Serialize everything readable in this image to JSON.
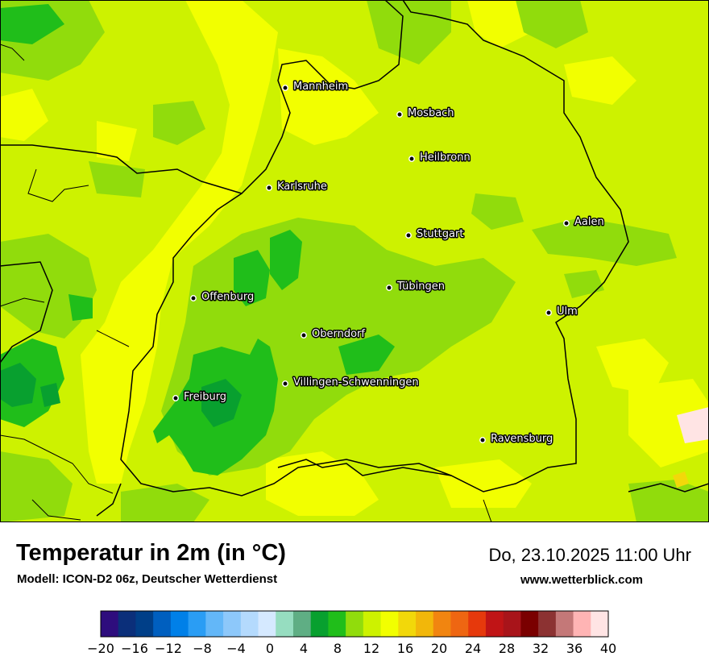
{
  "header": {
    "title": "Temperatur in 2m (in °C)",
    "subtitle": "Modell: ICON-D2 06z, Deutscher Wetterdienst",
    "datetime": "Do, 23.10.2025 11:00 Uhr",
    "website": "www.wetterblick.com"
  },
  "cities": [
    {
      "name": "Mannheim",
      "id": "mannheim"
    },
    {
      "name": "Mosbach",
      "id": "mosbach"
    },
    {
      "name": "Heilbronn",
      "id": "heilbronn"
    },
    {
      "name": "Karlsruhe",
      "id": "karlsruhe"
    },
    {
      "name": "Aalen",
      "id": "aalen"
    },
    {
      "name": "Stuttgart",
      "id": "stuttgart"
    },
    {
      "name": "Tübingen",
      "id": "tuebingen"
    },
    {
      "name": "Offenburg",
      "id": "offenburg"
    },
    {
      "name": "Ulm",
      "id": "ulm"
    },
    {
      "name": "Oberndorf",
      "id": "oberndorf"
    },
    {
      "name": "Villingen-Schwenningen",
      "id": "villingen-schwenningen"
    },
    {
      "name": "Freiburg",
      "id": "freiburg"
    },
    {
      "name": "Ravensburg",
      "id": "ravensburg"
    }
  ],
  "legend": {
    "tick_labels": [
      "−20",
      "−16",
      "−12",
      "−8",
      "−4",
      "0",
      "4",
      "8",
      "12",
      "16",
      "20",
      "24",
      "28",
      "32",
      "36",
      "40"
    ],
    "colors": [
      "#2e0d7d",
      "#0b2f7a",
      "#003f88",
      "#005fbf",
      "#0080e8",
      "#2a9df4",
      "#63b7f8",
      "#8dc8fa",
      "#b4dafd",
      "#d5e9ff",
      "#96ddc0",
      "#5fae84",
      "#08a02f",
      "#20be1a",
      "#91dc0c",
      "#cdf200",
      "#f2ff00",
      "#f2d80a",
      "#f2b70a",
      "#f18510",
      "#ee6612",
      "#e6390c",
      "#c01416",
      "#a8141a",
      "#7a0000",
      "#8c3232",
      "#c47878",
      "#ffb4b4",
      "#ffe4e4"
    ]
  },
  "map": {
    "base_color": "#cdf200",
    "colors": {
      "warm": "#f2ff00",
      "mid": "#91dc0c",
      "cool": "#20be1a",
      "cooler": "#08a02f",
      "coolest": "#5fae84",
      "warmest": "#ffe4e4"
    }
  }
}
